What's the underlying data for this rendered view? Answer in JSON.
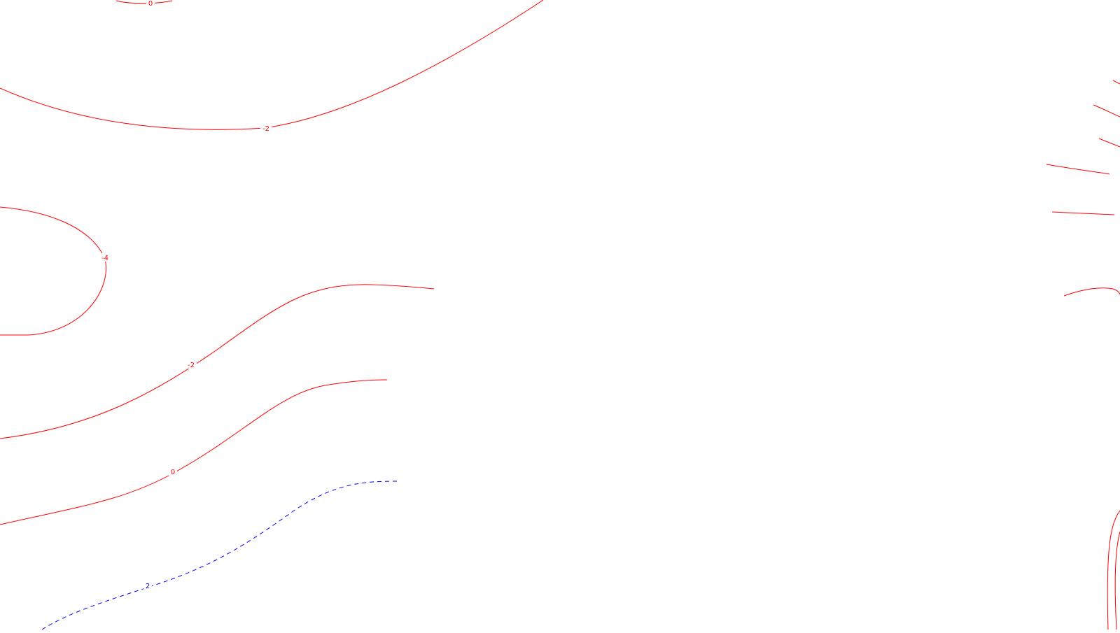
{
  "map": {
    "colors": {
      "background": "#ffffff",
      "negative_contour": "#ff0000",
      "positive_contour": "#0000ff"
    },
    "line_styles": {
      "negative": "solid",
      "positive": "dashed"
    },
    "contour_labels": {
      "top_zero": "0",
      "upper_minus_two": "-2",
      "left_minus_four": "-4",
      "middle_minus_two": "-2",
      "lower_zero": "0",
      "bottom_two": "2"
    }
  }
}
